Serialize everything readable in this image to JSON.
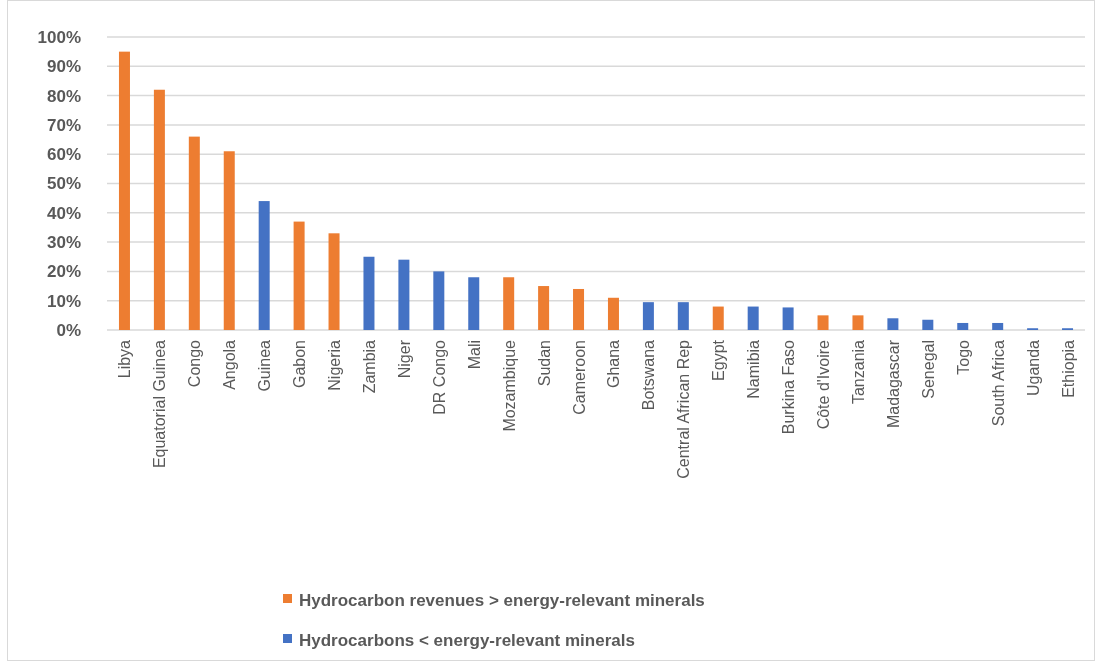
{
  "chart_data": {
    "type": "bar",
    "categories": [
      "Libya",
      "Equatorial Guinea",
      "Congo",
      "Angola",
      "Guinea",
      "Gabon",
      "Nigeria",
      "Zambia",
      "Niger",
      "DR Congo",
      "Mali",
      "Mozambique",
      "Sudan",
      "Cameroon",
      "Ghana",
      "Botswana",
      "Central African Rep",
      "Egypt",
      "Namibia",
      "Burkina Faso",
      "Côte d'Ivoire",
      "Tanzania",
      "Madagascar",
      "Senegal",
      "Togo",
      "South Africa",
      "Uganda",
      "Ethiopia"
    ],
    "series": [
      {
        "name": "Hydrocarbon revenues > energy-relevant minerals",
        "color": "#ed7d31",
        "values": [
          95,
          82,
          66,
          61,
          null,
          37,
          33,
          null,
          null,
          null,
          null,
          18,
          15,
          14,
          11,
          null,
          null,
          8,
          null,
          null,
          5,
          5,
          null,
          null,
          null,
          null,
          null,
          null
        ]
      },
      {
        "name": "Hydrocarbons < energy-relevant minerals",
        "color": "#4472c4",
        "values": [
          null,
          null,
          null,
          null,
          44,
          null,
          null,
          25,
          24,
          20,
          18,
          null,
          null,
          null,
          null,
          9.5,
          9.5,
          null,
          8,
          7.7,
          null,
          null,
          4,
          3.5,
          2.4,
          2.4,
          0.6,
          0.6
        ]
      }
    ],
    "ylim": [
      0,
      100
    ],
    "yticks": [
      {
        "value": 0,
        "label": "0%"
      },
      {
        "value": 10,
        "label": "10%"
      },
      {
        "value": 20,
        "label": "20%"
      },
      {
        "value": 30,
        "label": "30%"
      },
      {
        "value": 40,
        "label": "40%"
      },
      {
        "value": 50,
        "label": "50%"
      },
      {
        "value": 60,
        "label": "60%"
      },
      {
        "value": 70,
        "label": "70%"
      },
      {
        "value": 80,
        "label": "80%"
      },
      {
        "value": 90,
        "label": "90%"
      },
      {
        "value": 100,
        "label": "100%"
      }
    ],
    "grid": "y",
    "legend": "bottom"
  }
}
